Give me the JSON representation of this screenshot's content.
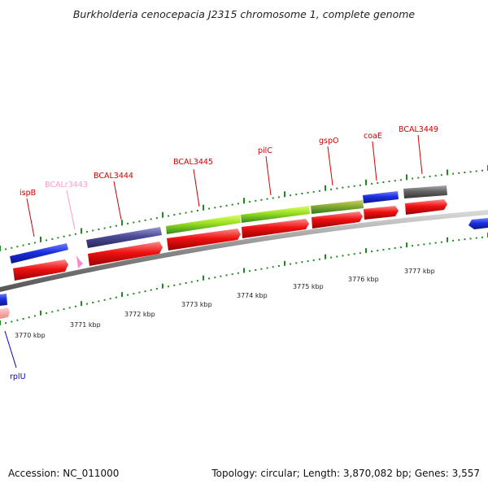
{
  "title": "Burkholderia cenocepacia J2315 chromosome 1, complete genome",
  "footer": {
    "accession": "Accession: NC_011000",
    "summary": "Topology: circular; Length: 3,870,082 bp; Genes: 3,557"
  },
  "scale_labels": [
    "3770 kbp",
    "3771 kbp",
    "3772 kbp",
    "3773 kbp",
    "3774 kbp",
    "3775 kbp",
    "3776 kbp",
    "3777 kbp"
  ],
  "gene_labels": [
    {
      "text": "ispB",
      "color": "#cc0000"
    },
    {
      "text": "BCALr3443",
      "color": "#ff99cc"
    },
    {
      "text": "BCAL3444",
      "color": "#cc0000"
    },
    {
      "text": "BCAL3445",
      "color": "#cc0000"
    },
    {
      "text": "pilC",
      "color": "#cc0000"
    },
    {
      "text": "gspO",
      "color": "#cc0000"
    },
    {
      "text": "coaE",
      "color": "#cc0000"
    },
    {
      "text": "BCAL3449",
      "color": "#cc0000"
    },
    {
      "text": "rplU",
      "color": "#0000cc"
    }
  ],
  "colors": {
    "cds": "#ee1111",
    "rna": "#ff88cc",
    "blue_feature": "#1a2fe0",
    "purple_feature": "#4a4a99",
    "green_feature": "#99dd22",
    "grey_feature": "#666666",
    "backbone": "#888888",
    "tick": "#228822"
  }
}
